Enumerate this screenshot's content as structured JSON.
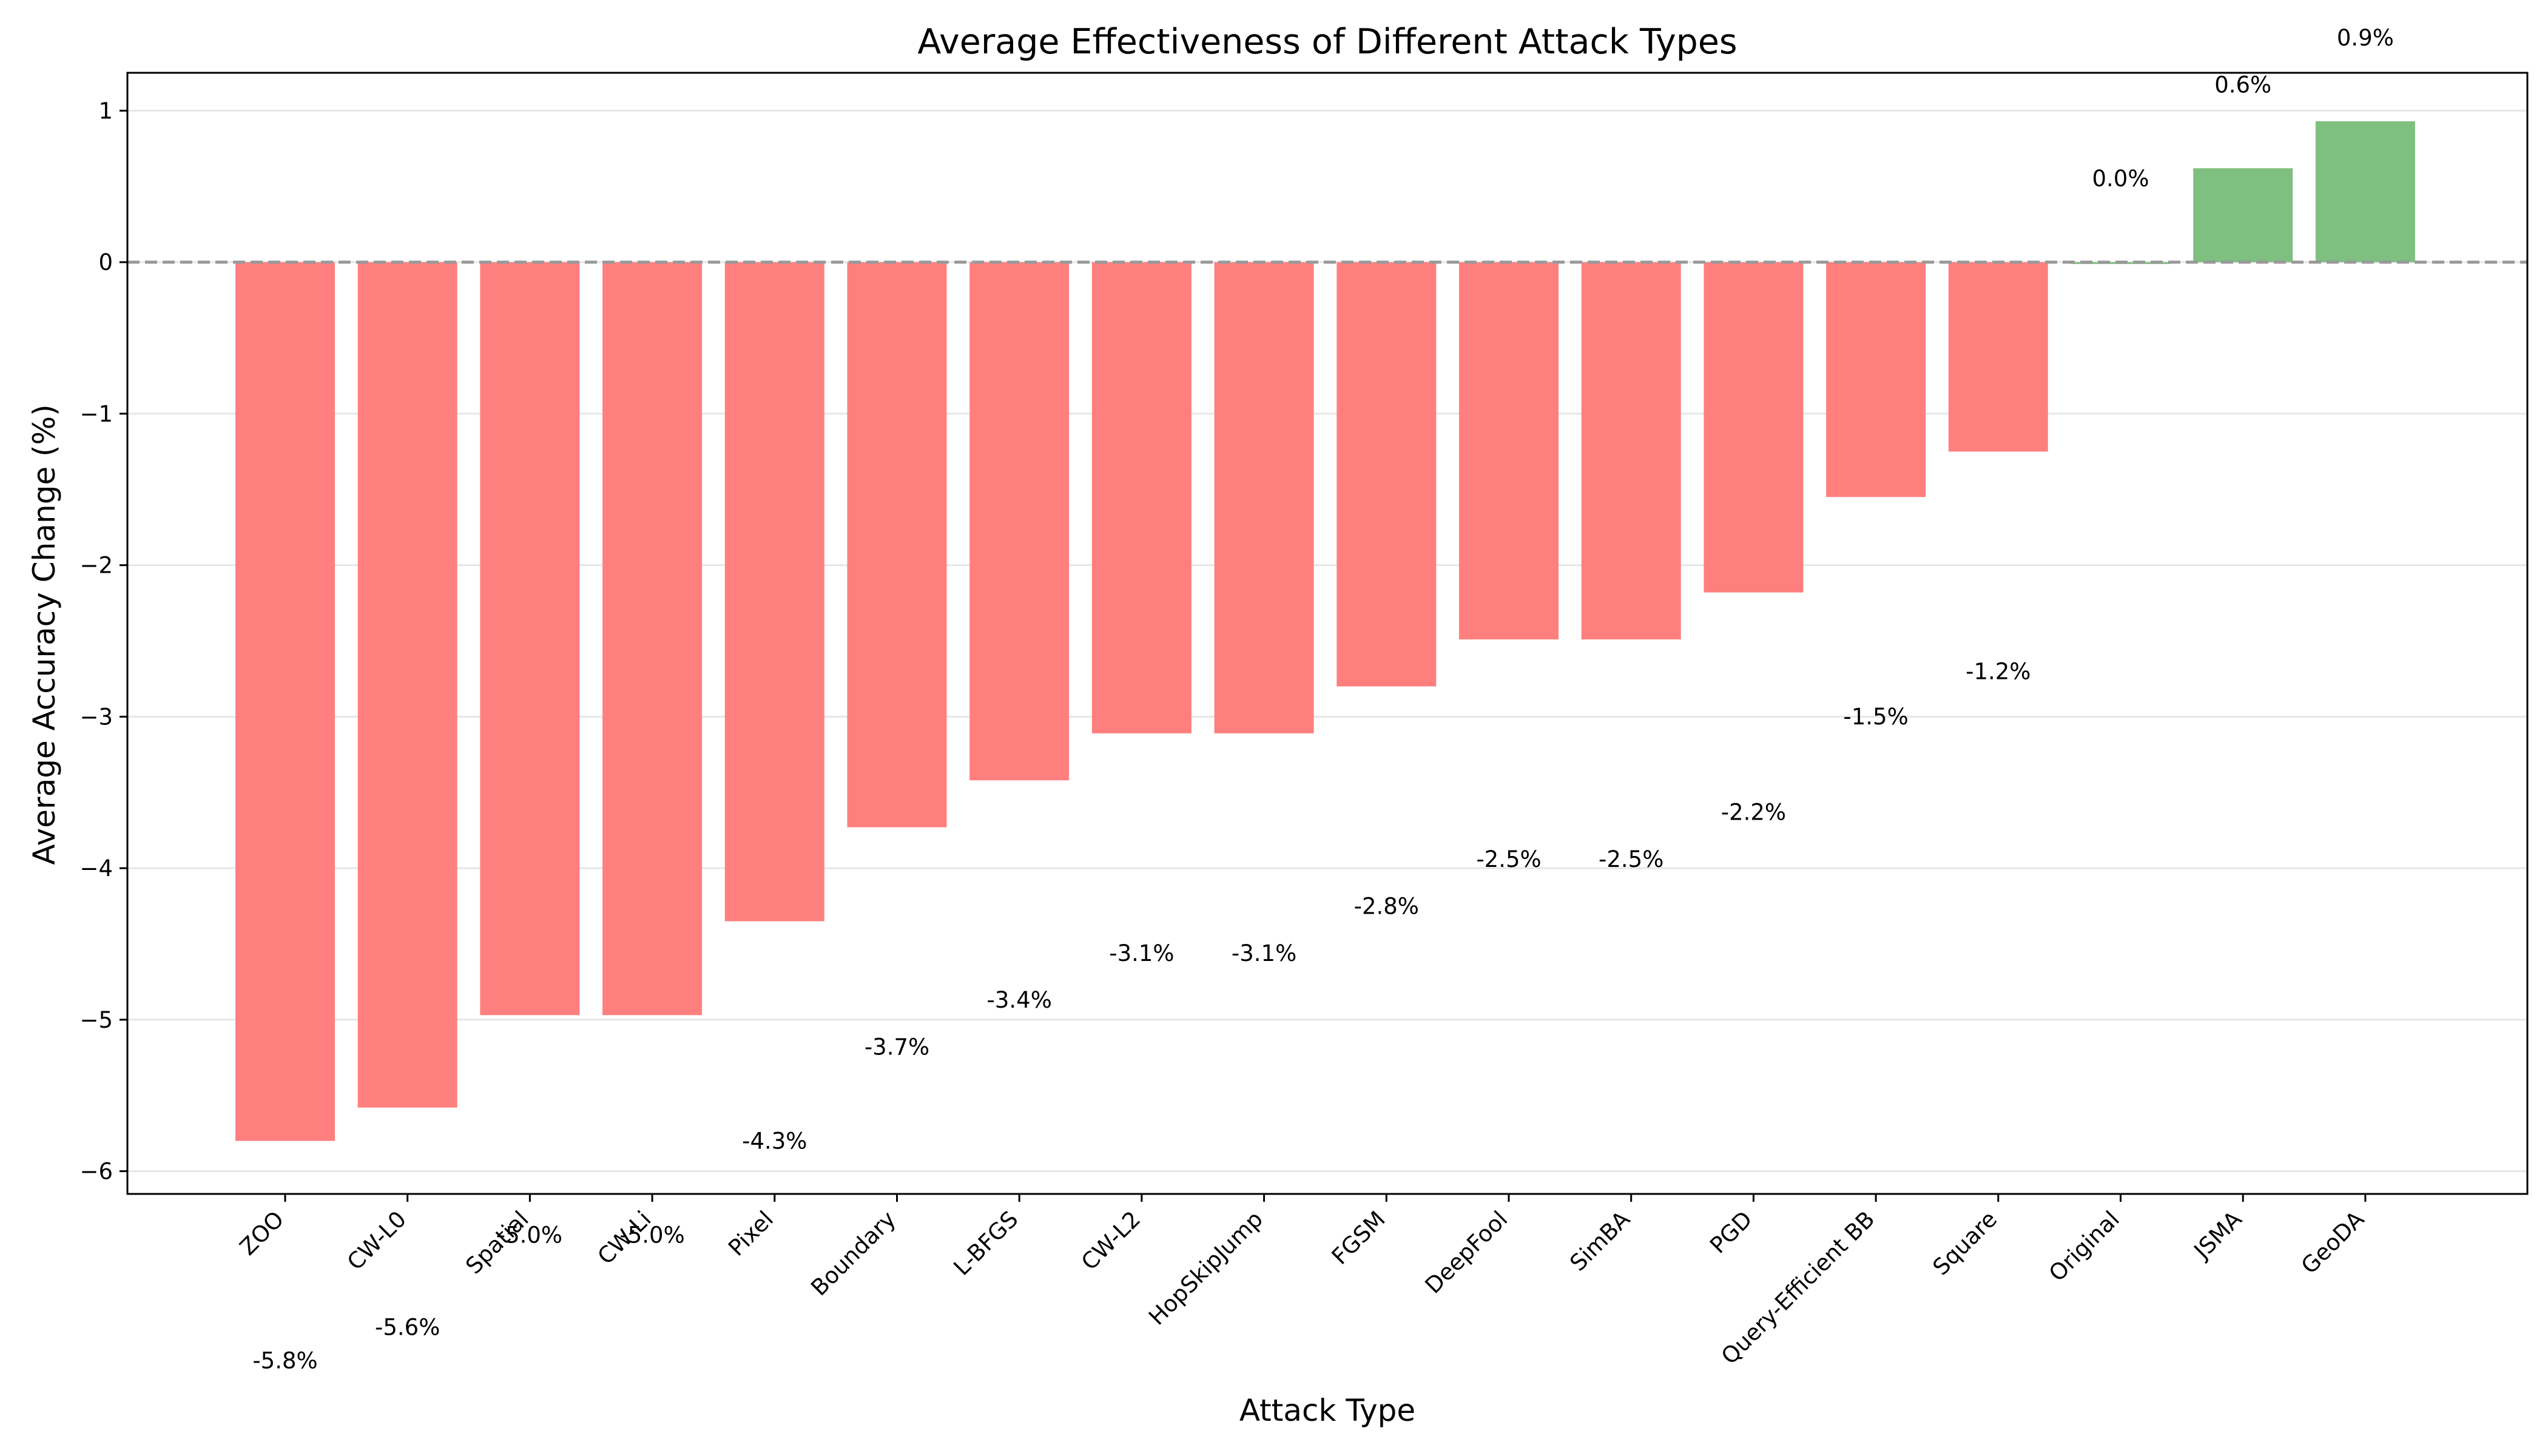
{
  "chart_data": {
    "type": "bar",
    "title": "Average Effectiveness of Different Attack Types",
    "xlabel": "Attack Type",
    "ylabel": "Average Accuracy Change (%)",
    "categories": [
      "ZOO",
      "CW-L0",
      "Spatial",
      "CW-Li",
      "Pixel",
      "Boundary",
      "L-BFGS",
      "CW-L2",
      "HopSkipJump",
      "FGSM",
      "DeepFool",
      "SimBA",
      "PGD",
      "Query-Efficient BB",
      "Square",
      "Original",
      "JSMA",
      "GeoDA"
    ],
    "values": [
      -5.8,
      -5.58,
      -4.97,
      -4.97,
      -4.35,
      -3.73,
      -3.42,
      -3.11,
      -3.11,
      -2.8,
      -2.49,
      -2.49,
      -2.18,
      -1.55,
      -1.25,
      0.0,
      0.62,
      0.93
    ],
    "value_labels": [
      "-5.8%",
      "-5.6%",
      "-5.0%",
      "-5.0%",
      "-4.3%",
      "-3.7%",
      "-3.4%",
      "-3.1%",
      "-3.1%",
      "-2.8%",
      "-2.5%",
      "-2.5%",
      "-2.2%",
      "-1.5%",
      "-1.2%",
      "0.0%",
      "0.6%",
      "0.9%"
    ],
    "ylim": [
      -6.15,
      1.25
    ],
    "yticks": [
      1,
      0,
      -1,
      -2,
      -3,
      -4,
      -5,
      -6
    ],
    "ytick_labels": [
      "1",
      "0",
      "−1",
      "−2",
      "−3",
      "−4",
      "−5",
      "−6"
    ],
    "grid": "horizontal",
    "reference_line": 0,
    "colors": {
      "negative": "#ff7f7f",
      "positive": "#7fbf7f",
      "reference": "#999999",
      "grid": "#e6e6e6"
    }
  }
}
